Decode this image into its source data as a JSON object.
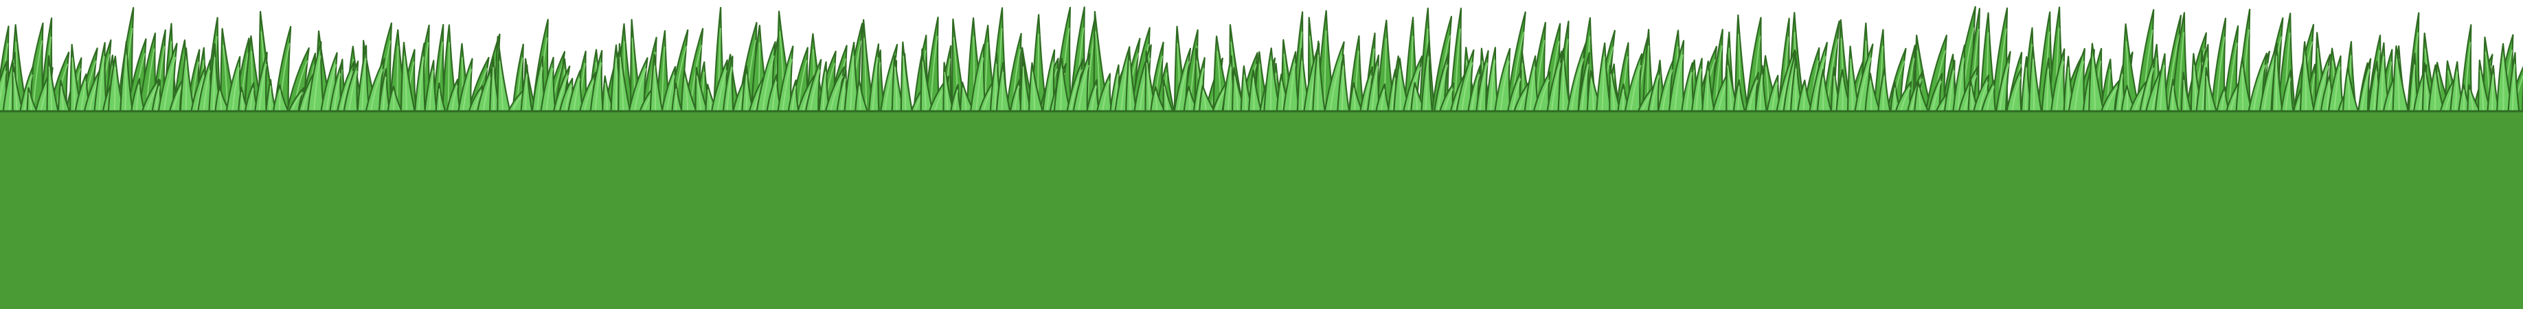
{
  "scene": {
    "type": "ground-tile",
    "elements": [
      "grass-blades",
      "dirt-ground"
    ]
  },
  "colors": {
    "background": "#ffffff",
    "ground_fill": "#4a9a36",
    "blade_fill": "#6fd063",
    "blade_stroke": "#2f6b22",
    "blade_highlight": "#9be58a",
    "blade_shadow": "#4fae3f"
  }
}
